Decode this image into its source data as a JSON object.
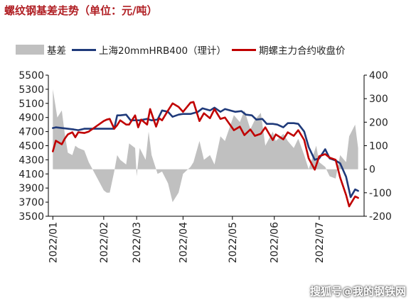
{
  "chart_data": {
    "type": "line",
    "title": "螺纹钢基差走势（单位：元/吨）",
    "left_ylim": [
      3500,
      5500
    ],
    "left_yticks": [
      3500,
      3700,
      3900,
      4100,
      4300,
      4500,
      4700,
      4900,
      5100,
      5300,
      5500
    ],
    "right_ylim": [
      -200,
      400
    ],
    "right_yticks": [
      -200,
      -100,
      0,
      100,
      200,
      300,
      400
    ],
    "x_ticks": [
      "2022/01",
      "2022/02",
      "2022/03",
      "2022/04",
      "2022/05",
      "2022/06",
      "2022/07"
    ],
    "x_dates": [
      "2022-01-04",
      "2022-02-07",
      "2022-03-01",
      "2022-04-01",
      "2022-05-04",
      "2022-06-01",
      "2022-07-01"
    ],
    "legend": "top",
    "grid": false,
    "series": [
      {
        "name": "基差",
        "type": "area",
        "axis": "right",
        "color": "#c0c0c0",
        "x": [
          "2022-01-04",
          "2022-01-05",
          "2022-01-07",
          "2022-01-10",
          "2022-01-12",
          "2022-01-14",
          "2022-01-17",
          "2022-01-19",
          "2022-01-21",
          "2022-01-25",
          "2022-01-28",
          "2022-02-07",
          "2022-02-09",
          "2022-02-11",
          "2022-02-14",
          "2022-02-16",
          "2022-02-18",
          "2022-02-22",
          "2022-02-24",
          "2022-02-28",
          "2022-03-01",
          "2022-03-03",
          "2022-03-07",
          "2022-03-09",
          "2022-03-11",
          "2022-03-15",
          "2022-03-18",
          "2022-03-22",
          "2022-03-25",
          "2022-03-29",
          "2022-04-01",
          "2022-04-06",
          "2022-04-08",
          "2022-04-12",
          "2022-04-15",
          "2022-04-19",
          "2022-04-22",
          "2022-04-26",
          "2022-04-29",
          "2022-05-05",
          "2022-05-09",
          "2022-05-12",
          "2022-05-16",
          "2022-05-19",
          "2022-05-23",
          "2022-05-26",
          "2022-05-31",
          "2022-06-02",
          "2022-06-07",
          "2022-06-10",
          "2022-06-14",
          "2022-06-17",
          "2022-06-21",
          "2022-06-24",
          "2022-06-29",
          "2022-07-01",
          "2022-07-05",
          "2022-07-08",
          "2022-07-12",
          "2022-07-15",
          "2022-07-19",
          "2022-07-21",
          "2022-07-25",
          "2022-07-27"
        ],
        "values": [
          340,
          300,
          220,
          250,
          150,
          70,
          60,
          100,
          90,
          80,
          30,
          -90,
          -100,
          -100,
          -10,
          60,
          40,
          20,
          110,
          90,
          -30,
          90,
          40,
          160,
          60,
          -20,
          -10,
          -60,
          -140,
          -100,
          -20,
          10,
          30,
          120,
          40,
          60,
          20,
          140,
          120,
          230,
          200,
          250,
          170,
          210,
          240,
          100,
          160,
          120,
          150,
          120,
          90,
          130,
          60,
          0,
          100,
          30,
          10,
          -30,
          -40,
          60,
          30,
          140,
          190,
          90
        ]
      },
      {
        "name": "上海20mmHRB400（理计）",
        "type": "line",
        "axis": "left",
        "color": "#1f3a7a",
        "x": [
          "2022-01-04",
          "2022-01-06",
          "2022-01-10",
          "2022-01-14",
          "2022-01-18",
          "2022-01-21",
          "2022-01-25",
          "2022-01-28",
          "2022-02-07",
          "2022-02-10",
          "2022-02-14",
          "2022-02-16",
          "2022-02-18",
          "2022-02-22",
          "2022-02-25",
          "2022-03-01",
          "2022-03-03",
          "2022-03-08",
          "2022-03-11",
          "2022-03-15",
          "2022-03-18",
          "2022-03-22",
          "2022-03-25",
          "2022-03-29",
          "2022-04-01",
          "2022-04-06",
          "2022-04-11",
          "2022-04-14",
          "2022-04-19",
          "2022-04-22",
          "2022-04-26",
          "2022-04-29",
          "2022-05-06",
          "2022-05-10",
          "2022-05-13",
          "2022-05-17",
          "2022-05-20",
          "2022-05-24",
          "2022-05-27",
          "2022-05-31",
          "2022-06-03",
          "2022-06-07",
          "2022-06-10",
          "2022-06-14",
          "2022-06-17",
          "2022-06-21",
          "2022-06-24",
          "2022-06-28",
          "2022-07-01",
          "2022-07-05",
          "2022-07-08",
          "2022-07-12",
          "2022-07-15",
          "2022-07-19",
          "2022-07-22",
          "2022-07-25",
          "2022-07-27"
        ],
        "values": [
          4750,
          4760,
          4750,
          4740,
          4730,
          4720,
          4740,
          4740,
          4740,
          4740,
          4740,
          4930,
          4930,
          4940,
          4860,
          4860,
          4860,
          4880,
          4860,
          4870,
          5000,
          4980,
          4910,
          4940,
          4950,
          4950,
          4980,
          5030,
          5000,
          5040,
          4980,
          5020,
          4980,
          4990,
          4940,
          4930,
          4870,
          4880,
          4810,
          4810,
          4800,
          4760,
          4820,
          4820,
          4810,
          4700,
          4480,
          4300,
          4320,
          4450,
          4320,
          4290,
          4250,
          4060,
          3770,
          3880,
          3860
        ]
      },
      {
        "name": "期螺主力合约收盘价",
        "type": "line",
        "axis": "left",
        "color": "#c00000",
        "x": [
          "2022-01-04",
          "2022-01-06",
          "2022-01-10",
          "2022-01-12",
          "2022-01-14",
          "2022-01-17",
          "2022-01-19",
          "2022-01-21",
          "2022-01-25",
          "2022-01-28",
          "2022-02-07",
          "2022-02-09",
          "2022-02-11",
          "2022-02-14",
          "2022-02-16",
          "2022-02-18",
          "2022-02-22",
          "2022-02-24",
          "2022-02-28",
          "2022-03-02",
          "2022-03-04",
          "2022-03-08",
          "2022-03-10",
          "2022-03-14",
          "2022-03-16",
          "2022-03-18",
          "2022-03-22",
          "2022-03-25",
          "2022-03-29",
          "2022-04-01",
          "2022-04-06",
          "2022-04-08",
          "2022-04-12",
          "2022-04-15",
          "2022-04-19",
          "2022-04-22",
          "2022-04-26",
          "2022-04-29",
          "2022-05-05",
          "2022-05-09",
          "2022-05-12",
          "2022-05-16",
          "2022-05-19",
          "2022-05-23",
          "2022-05-26",
          "2022-05-31",
          "2022-06-02",
          "2022-06-07",
          "2022-06-10",
          "2022-06-14",
          "2022-06-17",
          "2022-06-21",
          "2022-06-24",
          "2022-06-28",
          "2022-07-01",
          "2022-07-05",
          "2022-07-08",
          "2022-07-12",
          "2022-07-15",
          "2022-07-19",
          "2022-07-21",
          "2022-07-25",
          "2022-07-27"
        ],
        "values": [
          4420,
          4570,
          4520,
          4600,
          4660,
          4690,
          4620,
          4690,
          4680,
          4700,
          4850,
          4870,
          4880,
          4740,
          4790,
          4860,
          4800,
          4800,
          4930,
          4760,
          4870,
          4800,
          5020,
          4770,
          4890,
          4860,
          5000,
          5100,
          5050,
          4980,
          5110,
          5120,
          4850,
          4960,
          4890,
          5020,
          4880,
          4900,
          4720,
          4770,
          4650,
          4730,
          4640,
          4670,
          4760,
          4580,
          4660,
          4590,
          4690,
          4640,
          4720,
          4580,
          4320,
          4160,
          4350,
          4380,
          4330,
          4300,
          4050,
          3800,
          3640,
          3780,
          3760
        ]
      }
    ]
  },
  "watermark": "搜狐号@我的钢铁网"
}
